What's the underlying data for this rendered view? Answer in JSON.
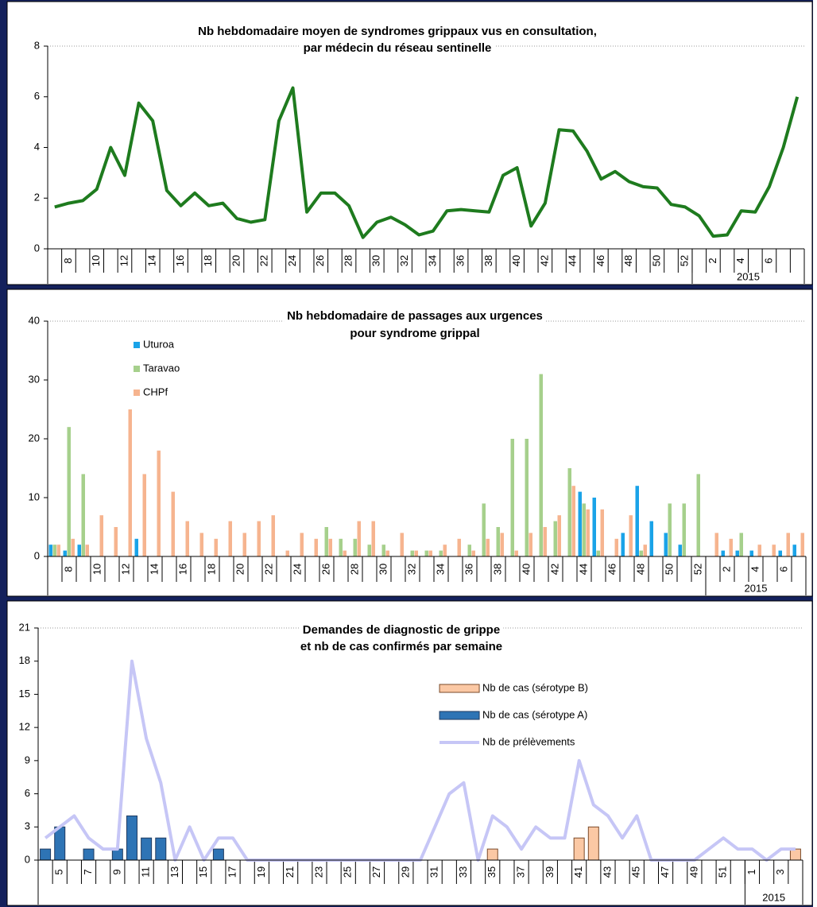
{
  "chart_data": [
    {
      "type": "line",
      "title": [
        "Nb hebdomadaire moyen de syndromes grippaux vus en consultation,",
        "par médecin du réseau sentinelle"
      ],
      "categories": [
        null,
        "8",
        null,
        "10",
        null,
        "12",
        null,
        "14",
        null,
        "16",
        null,
        "18",
        null,
        "20",
        null,
        "22",
        null,
        "24",
        null,
        "26",
        null,
        "28",
        null,
        "30",
        null,
        "32",
        null,
        "34",
        null,
        "36",
        null,
        "38",
        null,
        "40",
        null,
        "42",
        null,
        "44",
        null,
        "46",
        null,
        "48",
        null,
        "50",
        null,
        "52",
        null,
        "2",
        null,
        "4",
        null,
        "6",
        null,
        null
      ],
      "x_group": {
        "label": "2015",
        "start": 46
      },
      "color": "#1e7b1e",
      "values": [
        1.65,
        1.8,
        1.9,
        2.35,
        4.0,
        2.9,
        5.75,
        5.05,
        2.3,
        1.7,
        2.2,
        1.7,
        1.8,
        1.2,
        1.05,
        1.15,
        5.05,
        6.35,
        1.45,
        2.2,
        2.2,
        1.7,
        0.45,
        1.05,
        1.25,
        0.95,
        0.55,
        0.7,
        1.5,
        1.55,
        1.5,
        1.45,
        2.9,
        3.2,
        0.9,
        1.8,
        4.7,
        4.65,
        3.85,
        2.75,
        3.05,
        2.65,
        2.45,
        2.4,
        1.75,
        1.65,
        1.3,
        0.5,
        0.55,
        1.5,
        1.45,
        2.45,
        4.0,
        6.0
      ],
      "ylim": [
        0,
        8
      ],
      "yticks": [
        0,
        2,
        4,
        6,
        8
      ]
    },
    {
      "type": "bar",
      "title": [
        "Nb hebdomadaire de passages aux urgences",
        "pour syndrome grippal"
      ],
      "categories": [
        null,
        "8",
        null,
        "10",
        null,
        "12",
        null,
        "14",
        null,
        "16",
        null,
        "18",
        null,
        "20",
        null,
        "22",
        null,
        "24",
        null,
        "26",
        null,
        "28",
        null,
        "30",
        null,
        "32",
        null,
        "34",
        null,
        "36",
        null,
        "38",
        null,
        "40",
        null,
        "42",
        null,
        "44",
        null,
        "46",
        null,
        "48",
        null,
        "50",
        null,
        "52",
        null,
        "2",
        null,
        "4",
        null,
        "6",
        null
      ],
      "x_group": {
        "label": "2015",
        "start": 46
      },
      "series": [
        {
          "name": "Uturoa",
          "color": "#1aa3e8",
          "values": [
            2,
            1,
            2,
            0,
            0,
            0,
            3,
            0,
            0,
            0,
            0,
            0,
            0,
            0,
            0,
            0,
            0,
            0,
            0,
            0,
            0,
            0,
            0,
            0,
            0,
            0,
            0,
            0,
            0,
            0,
            0,
            0,
            0,
            0,
            0,
            0,
            0,
            11,
            10,
            0,
            4,
            12,
            6,
            4,
            2,
            0,
            0,
            1,
            1,
            1,
            0,
            1,
            2
          ]
        },
        {
          "name": "Taravao",
          "color": "#a6d08c",
          "values": [
            2,
            22,
            14,
            0,
            0,
            0,
            0,
            0,
            0,
            0,
            0,
            0,
            0,
            0,
            0,
            0,
            0,
            0,
            0,
            5,
            3,
            3,
            2,
            2,
            0,
            1,
            1,
            1,
            0,
            2,
            9,
            5,
            20,
            20,
            31,
            6,
            15,
            9,
            1,
            0,
            0,
            1,
            0,
            9,
            9,
            14,
            0,
            0,
            4,
            0,
            0,
            0,
            0
          ]
        },
        {
          "name": "CHPf",
          "color": "#f6b48f",
          "values": [
            2,
            3,
            2,
            7,
            5,
            25,
            14,
            18,
            11,
            6,
            4,
            3,
            6,
            4,
            6,
            7,
            1,
            4,
            3,
            3,
            1,
            6,
            6,
            1,
            4,
            1,
            1,
            2,
            3,
            1,
            3,
            4,
            1,
            4,
            5,
            7,
            12,
            8,
            8,
            3,
            7,
            2,
            0,
            0,
            0,
            0,
            4,
            3,
            0,
            2,
            2,
            4,
            4
          ]
        }
      ],
      "legend": "upper left",
      "ylim": [
        0,
        40
      ],
      "yticks": [
        0,
        10,
        20,
        30,
        40
      ]
    },
    {
      "type": "bar",
      "stacked": true,
      "title": [
        "Demandes de diagnostic de grippe",
        "et nb de cas confirmés par semaine"
      ],
      "categories": [
        null,
        "5",
        null,
        "7",
        null,
        "9",
        null,
        "11",
        null,
        "13",
        null,
        "15",
        null,
        "17",
        null,
        "19",
        null,
        "21",
        null,
        "23",
        null,
        "25",
        null,
        "27",
        null,
        "29",
        null,
        "31",
        null,
        "33",
        null,
        "35",
        null,
        "37",
        null,
        "39",
        null,
        "41",
        null,
        "43",
        null,
        "45",
        null,
        "47",
        null,
        "49",
        null,
        "51",
        null,
        "1",
        null,
        "3",
        null
      ],
      "x_group": {
        "label": "2015",
        "start": 49
      },
      "series": [
        {
          "name": "Nb de cas (sérotype B)",
          "color": "#fbc8a4",
          "edgecolor": "#7a4a2a",
          "values": [
            0,
            0,
            0,
            0,
            0,
            0,
            0,
            0,
            0,
            0,
            0,
            0,
            0,
            0,
            0,
            0,
            0,
            0,
            0,
            0,
            0,
            0,
            0,
            0,
            0,
            0,
            0,
            0,
            0,
            0,
            0,
            1,
            0,
            0,
            0,
            0,
            0,
            2,
            3,
            0,
            0,
            0,
            0,
            0,
            0,
            0,
            0,
            0,
            0,
            0,
            0,
            0,
            1
          ]
        },
        {
          "name": "Nb de cas (sérotype A)",
          "color": "#2e74b5",
          "edgecolor": "#1f3a60",
          "values": [
            1,
            3,
            0,
            1,
            0,
            1,
            4,
            2,
            2,
            0,
            0,
            0,
            1,
            0,
            0,
            0,
            0,
            0,
            0,
            0,
            0,
            0,
            0,
            0,
            0,
            0,
            0,
            0,
            0,
            0,
            0,
            0,
            0,
            0,
            0,
            0,
            0,
            0,
            0,
            0,
            0,
            0,
            0,
            0,
            0,
            0,
            0,
            0,
            0,
            0,
            0,
            0,
            0
          ]
        },
        {
          "name": "Nb de prélèvements",
          "type": "line",
          "color": "#c6c6f6",
          "values": [
            2,
            3,
            4,
            2,
            1,
            1,
            18,
            11,
            7,
            0,
            3,
            0,
            2,
            2,
            0,
            0,
            0,
            0,
            0,
            0,
            0,
            0,
            0,
            0,
            0,
            0,
            0,
            3,
            6,
            7,
            0,
            4,
            3,
            1,
            3,
            2,
            2,
            9,
            5,
            4,
            2,
            4,
            0,
            0,
            0,
            0,
            1,
            2,
            1,
            1,
            0,
            1,
            1
          ]
        }
      ],
      "legend": "upper right",
      "ylim": [
        0,
        21
      ],
      "yticks": [
        0,
        3,
        6,
        9,
        12,
        15,
        18,
        21
      ]
    }
  ]
}
